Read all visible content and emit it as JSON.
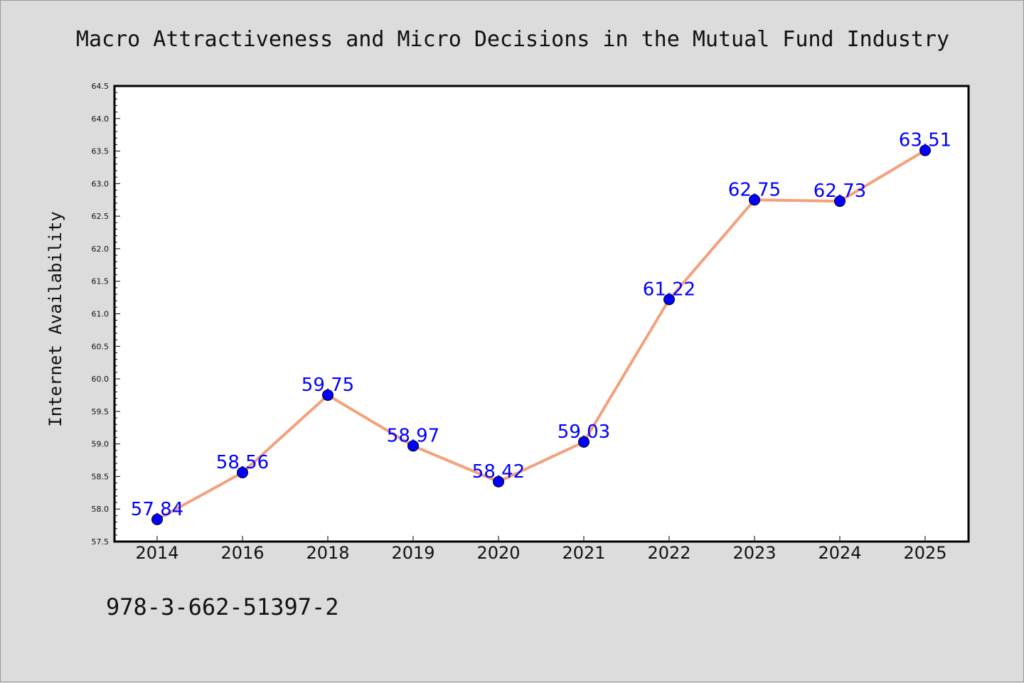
{
  "chart_data": {
    "type": "line",
    "title": "Macro Attractiveness and Micro Decisions in the Mutual Fund Industry",
    "xlabel": "",
    "ylabel": "Internet Availability",
    "categories": [
      "2014",
      "2016",
      "2018",
      "2019",
      "2020",
      "2021",
      "2022",
      "2023",
      "2024",
      "2025"
    ],
    "series": [
      {
        "values": [
          57.84,
          58.56,
          59.75,
          58.97,
          58.42,
          59.03,
          61.22,
          62.75,
          62.73,
          63.51
        ],
        "labels": [
          "57.84",
          "58.56",
          "59.75",
          "58.97",
          "58.42",
          "59.03",
          "61.22",
          "62.75",
          "62.73",
          "63.51"
        ],
        "line_color": "#f4a07c",
        "marker_color": "#0000ff"
      }
    ],
    "ylim": [
      57.5,
      64.5
    ],
    "yticks": [
      "57.5",
      "58.0",
      "58.5",
      "59.0",
      "59.5",
      "60.0",
      "60.5",
      "61.0",
      "61.5",
      "62.0",
      "62.5",
      "63.0",
      "63.5",
      "64.0",
      "64.5"
    ],
    "grid": false,
    "legend": "none"
  },
  "footer": {
    "isbn": "978-3-662-51397-2"
  }
}
